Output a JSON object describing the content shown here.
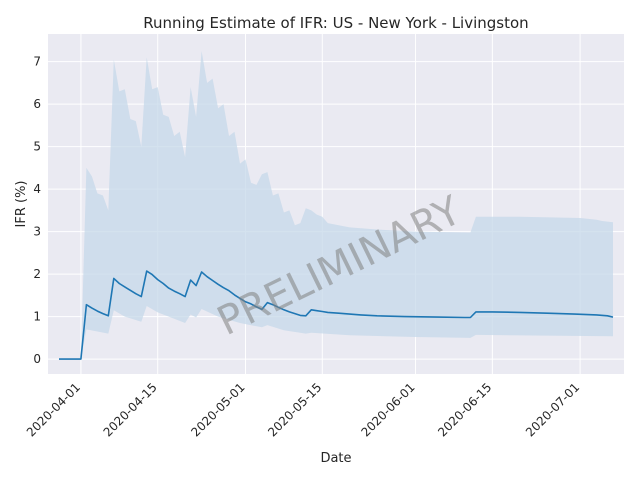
{
  "chart_data": {
    "type": "line",
    "title": "Running Estimate of IFR: US - New York - Livingston",
    "xlabel": "Date",
    "ylabel": "IFR (%)",
    "watermark": "PRELIMINARY",
    "x_range": [
      "2020-03-26",
      "2020-07-09"
    ],
    "ylim": [
      -0.35,
      7.65
    ],
    "y_ticks": [
      0,
      1,
      2,
      3,
      4,
      5,
      6,
      7
    ],
    "x_ticks": [
      "2020-04-01",
      "2020-04-15",
      "2020-05-01",
      "2020-05-15",
      "2020-06-01",
      "2020-06-15",
      "2020-07-01"
    ],
    "grid": true,
    "colors": {
      "background": "#eaeaf2",
      "grid": "#ffffff",
      "line": "#1f77b4",
      "band": "#c6d8ea"
    },
    "series": [
      {
        "values": [
          [
            "2020-03-28",
            0.0
          ],
          [
            "2020-03-29",
            0.0
          ],
          [
            "2020-03-30",
            0.0
          ],
          [
            "2020-03-31",
            0.0
          ],
          [
            "2020-04-01",
            0.0
          ],
          [
            "2020-04-02",
            1.28
          ],
          [
            "2020-04-03",
            1.2
          ],
          [
            "2020-04-04",
            1.13
          ],
          [
            "2020-04-05",
            1.07
          ],
          [
            "2020-04-06",
            1.02
          ],
          [
            "2020-04-07",
            1.9
          ],
          [
            "2020-04-08",
            1.78
          ],
          [
            "2020-04-09",
            1.7
          ],
          [
            "2020-04-10",
            1.62
          ],
          [
            "2020-04-11",
            1.54
          ],
          [
            "2020-04-12",
            1.47
          ],
          [
            "2020-04-13",
            2.07
          ],
          [
            "2020-04-14",
            1.99
          ],
          [
            "2020-04-15",
            1.87
          ],
          [
            "2020-04-16",
            1.78
          ],
          [
            "2020-04-17",
            1.67
          ],
          [
            "2020-04-18",
            1.6
          ],
          [
            "2020-04-19",
            1.54
          ],
          [
            "2020-04-20",
            1.47
          ],
          [
            "2020-04-21",
            1.86
          ],
          [
            "2020-04-22",
            1.73
          ],
          [
            "2020-04-23",
            2.05
          ],
          [
            "2020-04-24",
            1.94
          ],
          [
            "2020-04-25",
            1.85
          ],
          [
            "2020-04-26",
            1.76
          ],
          [
            "2020-04-27",
            1.68
          ],
          [
            "2020-04-28",
            1.61
          ],
          [
            "2020-04-29",
            1.51
          ],
          [
            "2020-04-30",
            1.43
          ],
          [
            "2020-05-01",
            1.35
          ],
          [
            "2020-05-02",
            1.3
          ],
          [
            "2020-05-03",
            1.23
          ],
          [
            "2020-05-04",
            1.17
          ],
          [
            "2020-05-05",
            1.33
          ],
          [
            "2020-05-06",
            1.28
          ],
          [
            "2020-05-07",
            1.22
          ],
          [
            "2020-05-08",
            1.16
          ],
          [
            "2020-05-09",
            1.11
          ],
          [
            "2020-05-10",
            1.07
          ],
          [
            "2020-05-11",
            1.03
          ],
          [
            "2020-05-12",
            1.02
          ],
          [
            "2020-05-13",
            1.16
          ],
          [
            "2020-05-14",
            1.14
          ],
          [
            "2020-05-15",
            1.12
          ],
          [
            "2020-05-16",
            1.1
          ],
          [
            "2020-05-18",
            1.08
          ],
          [
            "2020-05-20",
            1.06
          ],
          [
            "2020-05-22",
            1.04
          ],
          [
            "2020-05-25",
            1.02
          ],
          [
            "2020-05-30",
            1.0
          ],
          [
            "2020-06-05",
            0.99
          ],
          [
            "2020-06-10",
            0.98
          ],
          [
            "2020-06-10",
            0.98
          ],
          [
            "2020-06-11",
            0.98
          ],
          [
            "2020-06-12",
            1.11
          ],
          [
            "2020-06-15",
            1.11
          ],
          [
            "2020-06-20",
            1.1
          ],
          [
            "2020-06-25",
            1.08
          ],
          [
            "2020-06-30",
            1.06
          ],
          [
            "2020-07-04",
            1.04
          ],
          [
            "2020-07-06",
            1.02
          ],
          [
            "2020-07-07",
            0.99
          ]
        ],
        "lower": [
          [
            "2020-03-28",
            0.0
          ],
          [
            "2020-03-31",
            0.0
          ],
          [
            "2020-04-01",
            0.0
          ],
          [
            "2020-04-02",
            0.7
          ],
          [
            "2020-04-04",
            0.65
          ],
          [
            "2020-04-06",
            0.6
          ],
          [
            "2020-04-07",
            1.15
          ],
          [
            "2020-04-09",
            1.0
          ],
          [
            "2020-04-12",
            0.88
          ],
          [
            "2020-04-13",
            1.25
          ],
          [
            "2020-04-15",
            1.1
          ],
          [
            "2020-04-18",
            0.95
          ],
          [
            "2020-04-20",
            0.85
          ],
          [
            "2020-04-21",
            1.05
          ],
          [
            "2020-04-22",
            0.98
          ],
          [
            "2020-04-23",
            1.18
          ],
          [
            "2020-04-26",
            1.0
          ],
          [
            "2020-04-30",
            0.85
          ],
          [
            "2020-05-04",
            0.75
          ],
          [
            "2020-05-05",
            0.8
          ],
          [
            "2020-05-08",
            0.68
          ],
          [
            "2020-05-12",
            0.6
          ],
          [
            "2020-05-13",
            0.62
          ],
          [
            "2020-05-20",
            0.56
          ],
          [
            "2020-06-01",
            0.52
          ],
          [
            "2020-06-11",
            0.5
          ],
          [
            "2020-06-12",
            0.57
          ],
          [
            "2020-07-07",
            0.54
          ]
        ],
        "upper": [
          [
            "2020-03-28",
            0.0
          ],
          [
            "2020-03-31",
            0.0
          ],
          [
            "2020-04-01",
            0.0
          ],
          [
            "2020-04-02",
            4.5
          ],
          [
            "2020-04-03",
            4.3
          ],
          [
            "2020-04-04",
            3.9
          ],
          [
            "2020-04-05",
            3.85
          ],
          [
            "2020-04-06",
            3.5
          ],
          [
            "2020-04-07",
            7.05
          ],
          [
            "2020-04-08",
            6.3
          ],
          [
            "2020-04-09",
            6.35
          ],
          [
            "2020-04-10",
            5.65
          ],
          [
            "2020-04-11",
            5.6
          ],
          [
            "2020-04-12",
            5.0
          ],
          [
            "2020-04-13",
            7.1
          ],
          [
            "2020-04-14",
            6.35
          ],
          [
            "2020-04-15",
            6.4
          ],
          [
            "2020-04-16",
            5.75
          ],
          [
            "2020-04-17",
            5.7
          ],
          [
            "2020-04-18",
            5.25
          ],
          [
            "2020-04-19",
            5.35
          ],
          [
            "2020-04-20",
            4.75
          ],
          [
            "2020-04-21",
            6.4
          ],
          [
            "2020-04-22",
            5.7
          ],
          [
            "2020-04-23",
            7.25
          ],
          [
            "2020-04-24",
            6.5
          ],
          [
            "2020-04-25",
            6.6
          ],
          [
            "2020-04-26",
            5.9
          ],
          [
            "2020-04-27",
            6.0
          ],
          [
            "2020-04-28",
            5.25
          ],
          [
            "2020-04-29",
            5.35
          ],
          [
            "2020-04-30",
            4.6
          ],
          [
            "2020-05-01",
            4.7
          ],
          [
            "2020-05-02",
            4.15
          ],
          [
            "2020-05-03",
            4.1
          ],
          [
            "2020-05-04",
            4.35
          ],
          [
            "2020-05-05",
            4.4
          ],
          [
            "2020-05-06",
            3.85
          ],
          [
            "2020-05-07",
            3.9
          ],
          [
            "2020-05-08",
            3.45
          ],
          [
            "2020-05-09",
            3.5
          ],
          [
            "2020-05-10",
            3.15
          ],
          [
            "2020-05-11",
            3.2
          ],
          [
            "2020-05-12",
            3.55
          ],
          [
            "2020-05-13",
            3.5
          ],
          [
            "2020-05-14",
            3.4
          ],
          [
            "2020-05-15",
            3.35
          ],
          [
            "2020-05-16",
            3.2
          ],
          [
            "2020-05-18",
            3.15
          ],
          [
            "2020-05-20",
            3.1
          ],
          [
            "2020-05-25",
            3.05
          ],
          [
            "2020-06-01",
            3.0
          ],
          [
            "2020-06-11",
            2.98
          ],
          [
            "2020-06-12",
            3.35
          ],
          [
            "2020-06-20",
            3.35
          ],
          [
            "2020-07-01",
            3.32
          ],
          [
            "2020-07-04",
            3.28
          ],
          [
            "2020-07-05",
            3.25
          ],
          [
            "2020-07-07",
            3.22
          ]
        ]
      }
    ]
  }
}
